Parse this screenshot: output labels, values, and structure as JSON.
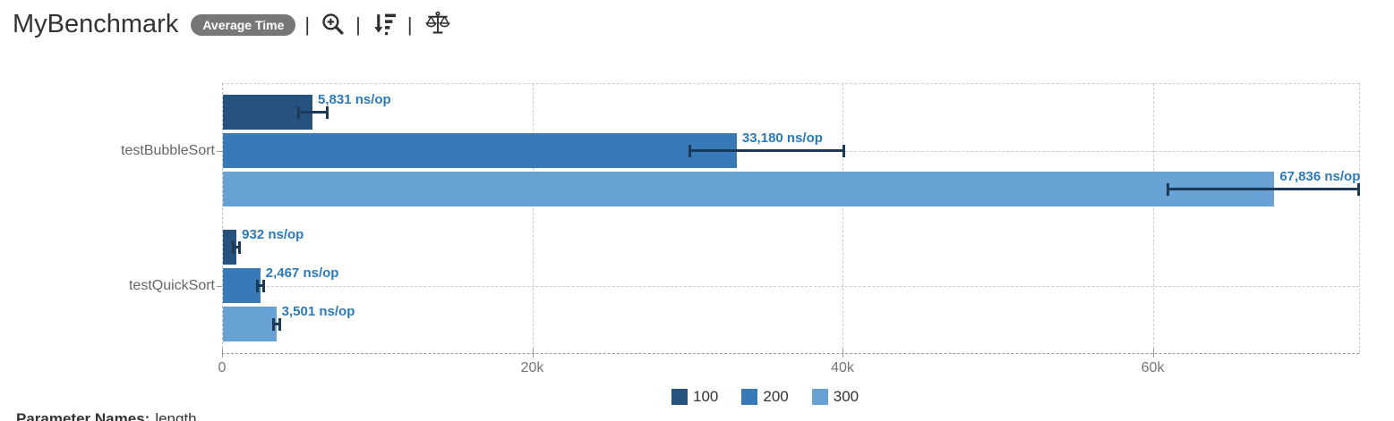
{
  "header": {
    "title": "MyBenchmark",
    "badge": "Average Time",
    "separator": "|"
  },
  "chart_data": {
    "type": "bar",
    "orientation": "horizontal",
    "categories": [
      "testBubbleSort",
      "testQuickSort"
    ],
    "series": [
      {
        "name": "100",
        "color": "#25537e",
        "values": [
          5831,
          932
        ],
        "error_minus": [
          930,
          230
        ],
        "error_plus": [
          1000,
          230
        ],
        "labels": [
          "5,831 ns/op",
          "932 ns/op"
        ]
      },
      {
        "name": "200",
        "color": "#3879b8",
        "values": [
          33180,
          2467
        ],
        "error_minus": [
          3080,
          230
        ],
        "error_plus": [
          6920,
          230
        ],
        "labels": [
          "33,180 ns/op",
          "2,467 ns/op"
        ]
      },
      {
        "name": "300",
        "color": "#68a2d4",
        "values": [
          67836,
          3501
        ],
        "error_minus": [
          6900,
          230
        ],
        "error_plus": [
          5460,
          230
        ],
        "labels": [
          "67,836 ns/op",
          "3,501 ns/op"
        ]
      }
    ],
    "unit": "ns/op",
    "xlabel": "",
    "ylabel": "",
    "xlim": [
      0,
      73300
    ],
    "x_ticks": [
      {
        "value": 0,
        "label": "0"
      },
      {
        "value": 20000,
        "label": "20k"
      },
      {
        "value": 40000,
        "label": "40k"
      },
      {
        "value": 60000,
        "label": "60k"
      }
    ],
    "grid": "dashed",
    "legend_position": "bottom",
    "value_label_color": "#2b7ab9",
    "error_bar_color": "#1b3a5a"
  },
  "footer": {
    "parameter_names_label": "Parameter Names:",
    "parameter_names_value": "length"
  }
}
